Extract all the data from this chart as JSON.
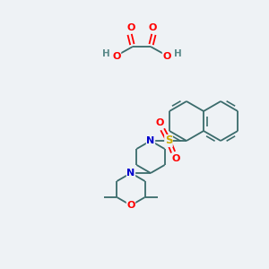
{
  "background_color": "#eef2f5",
  "figsize": [
    3.0,
    3.0
  ],
  "dpi": 100,
  "atom_colors": {
    "C": "#3a6b6b",
    "H": "#5a8a8a",
    "N": "#0000cc",
    "O": "#ff0000",
    "S": "#ccaa00"
  },
  "bond_color": "#3a6b6b",
  "bond_width": 1.3
}
